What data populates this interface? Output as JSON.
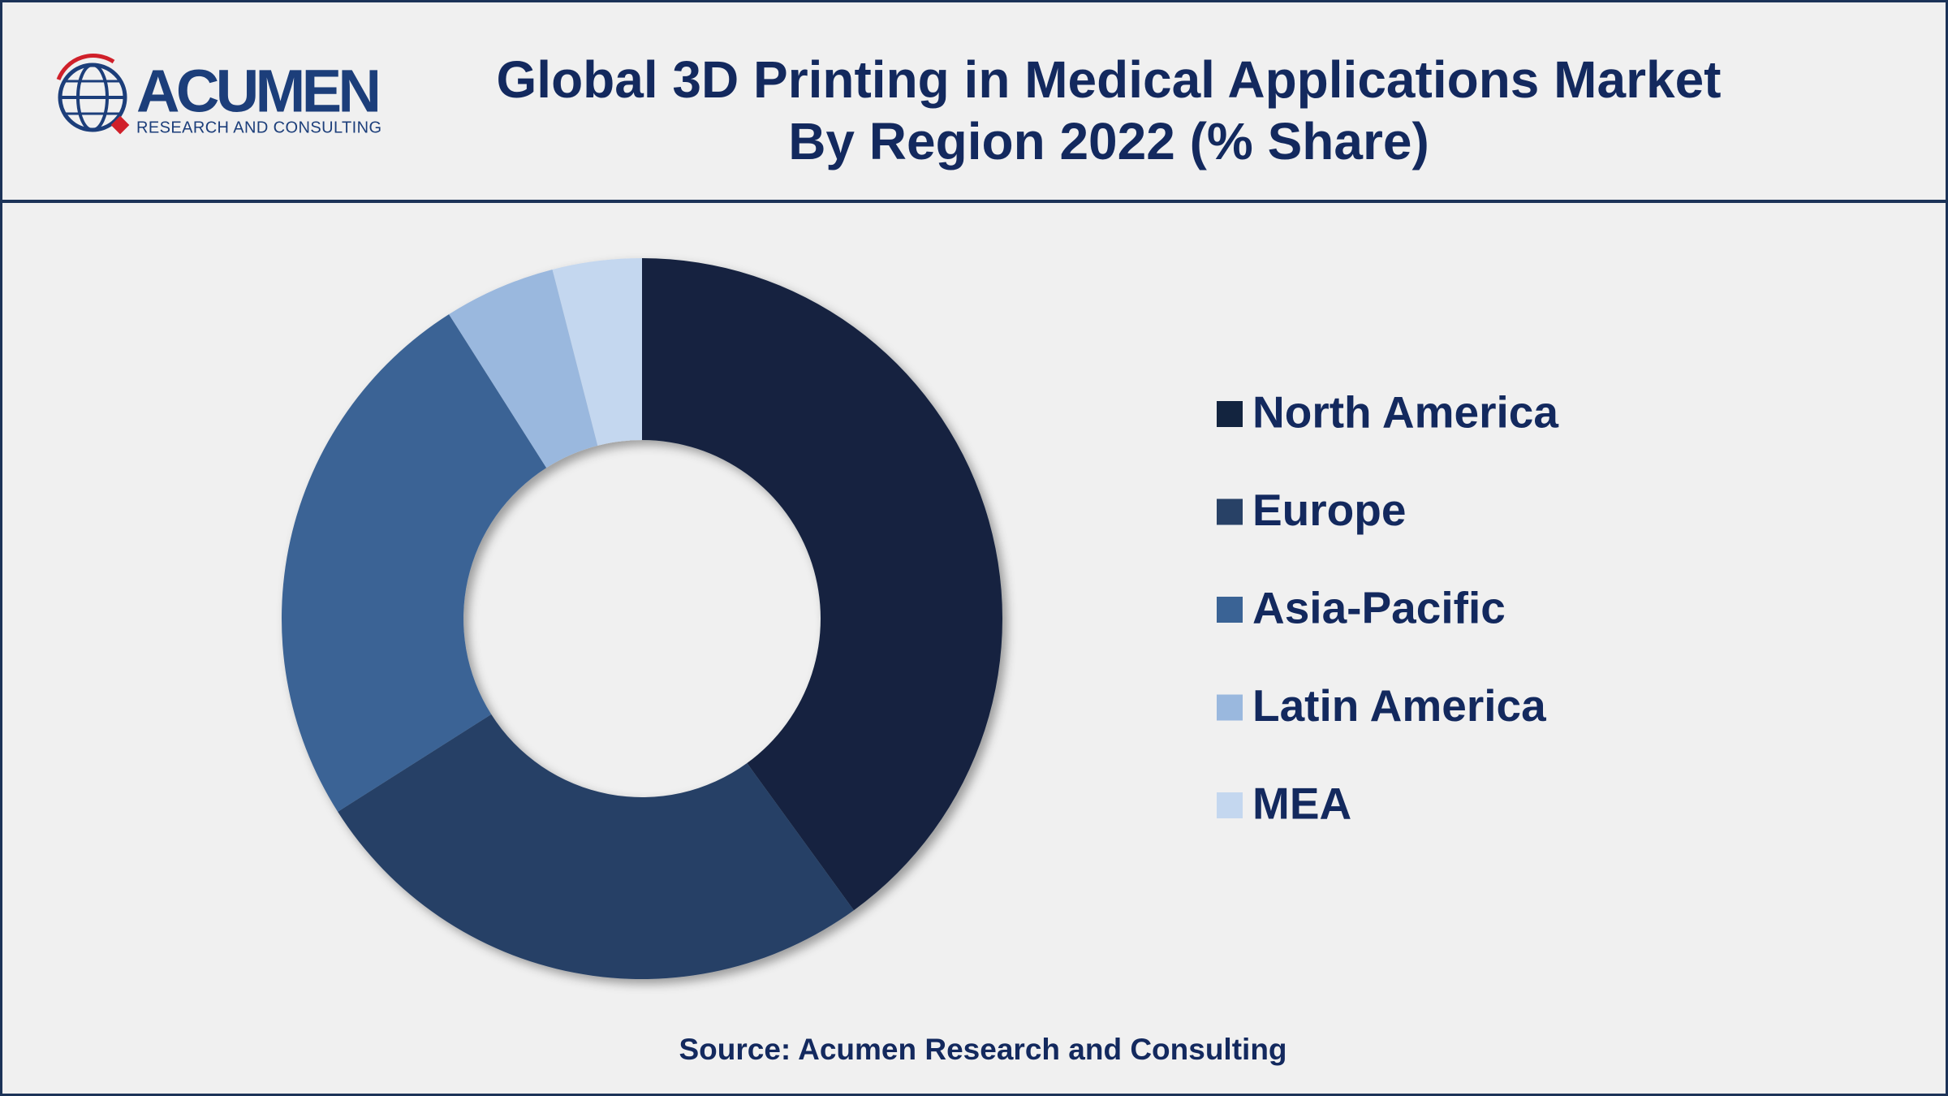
{
  "logo": {
    "name": "ACUMEN",
    "tagline": "RESEARCH AND CONSULTING"
  },
  "chart_data": {
    "type": "donut",
    "title": [
      "Global 3D Printing in Medical Applications Market",
      "By Region 2022 (% Share)"
    ],
    "categories": [
      "North America",
      "Europe",
      "Asia-Pacific",
      "Latin America",
      "MEA"
    ],
    "values": [
      40,
      26,
      25,
      5,
      4
    ],
    "colors": [
      "#13243f",
      "#284166",
      "#3a6395",
      "#9ab8de",
      "#c4d7ef"
    ],
    "legend": "right",
    "source": "Source: Acumen Research and Consulting"
  }
}
